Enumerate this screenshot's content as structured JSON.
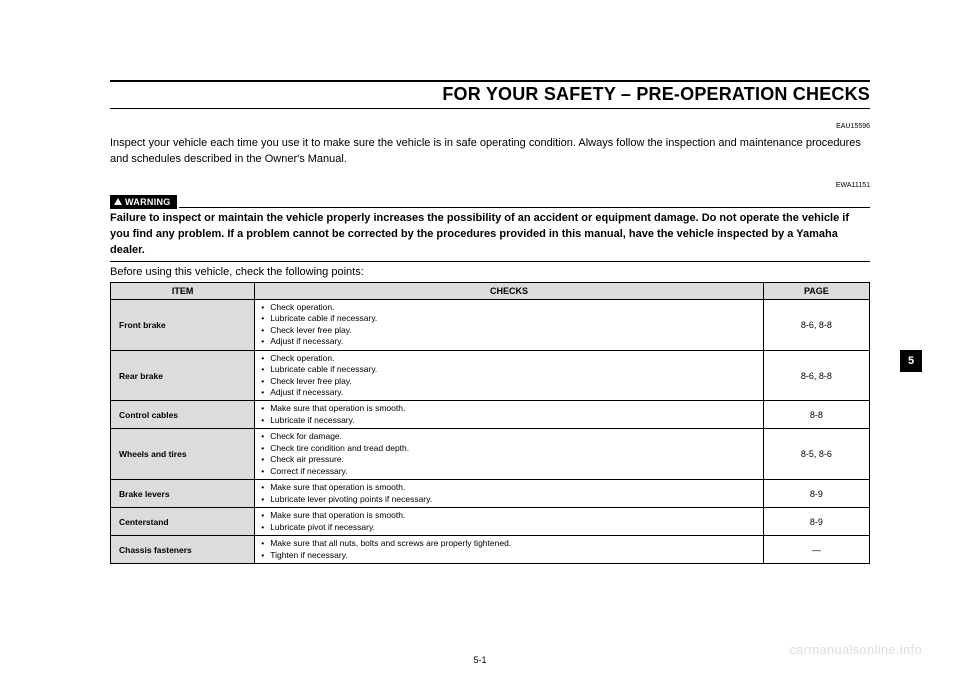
{
  "header": {
    "title": "FOR YOUR SAFETY – PRE-OPERATION CHECKS"
  },
  "codes": {
    "eau": "EAU15596",
    "ewa": "EWA11151"
  },
  "intro": "Inspect your vehicle each time you use it to make sure the vehicle is in safe operating condition. Always follow the inspection and maintenance procedures and schedules described in the Owner's Manual.",
  "warning": {
    "label": "WARNING",
    "text": "Failure to inspect or maintain the vehicle properly increases the possibility of an accident or equipment damage. Do not operate the vehicle if you find any problem. If a problem cannot be corrected by the procedures provided in this manual, have the vehicle inspected by a Yamaha dealer."
  },
  "before_text": "Before using this vehicle, check the following points:",
  "table": {
    "columns": {
      "item": "ITEM",
      "checks": "CHECKS",
      "page": "PAGE"
    },
    "rows": [
      {
        "item": "Front brake",
        "checks": [
          "Check operation.",
          "Lubricate cable if necessary.",
          "Check lever free play.",
          "Adjust if necessary."
        ],
        "page": "8-6, 8-8"
      },
      {
        "item": "Rear brake",
        "checks": [
          "Check operation.",
          "Lubricate cable if necessary.",
          "Check lever free play.",
          "Adjust if necessary."
        ],
        "page": "8-6, 8-8"
      },
      {
        "item": "Control cables",
        "checks": [
          "Make sure that operation is smooth.",
          "Lubricate if necessary."
        ],
        "page": "8-8"
      },
      {
        "item": "Wheels and tires",
        "checks": [
          "Check for damage.",
          "Check tire condition and tread depth.",
          "Check air pressure.",
          "Correct if necessary."
        ],
        "page": "8-5, 8-6"
      },
      {
        "item": "Brake levers",
        "checks": [
          "Make sure that operation is smooth.",
          "Lubricate lever pivoting points if necessary."
        ],
        "page": "8-9"
      },
      {
        "item": "Centerstand",
        "checks": [
          "Make sure that operation is smooth.",
          "Lubricate pivot if necessary."
        ],
        "page": "8-9"
      },
      {
        "item": "Chassis fasteners",
        "checks": [
          "Make sure that all nuts, bolts and screws are properly tightened.",
          "Tighten if necessary."
        ],
        "page": "—"
      }
    ]
  },
  "page_number": "5-1",
  "side_tab": "5",
  "watermark": "carmanualsonline.info",
  "style": {
    "colors": {
      "background": "#ffffff",
      "text": "#000000",
      "header_bg": "#dcdcdc",
      "warning_bg": "#000000",
      "warning_fg": "#ffffff",
      "tab_bg": "#000000",
      "tab_fg": "#ffffff",
      "watermark": "#dddddd",
      "border": "#000000"
    },
    "fonts": {
      "title_size_pt": 14,
      "body_size_pt": 8.5,
      "table_size_pt": 7,
      "warning_label_size_pt": 7,
      "family": "Arial, Helvetica, sans-serif"
    },
    "table_layout": {
      "col_widths_pct": [
        19,
        67,
        14
      ],
      "header_align": "center",
      "page_align": "center",
      "item_align": "left"
    }
  }
}
